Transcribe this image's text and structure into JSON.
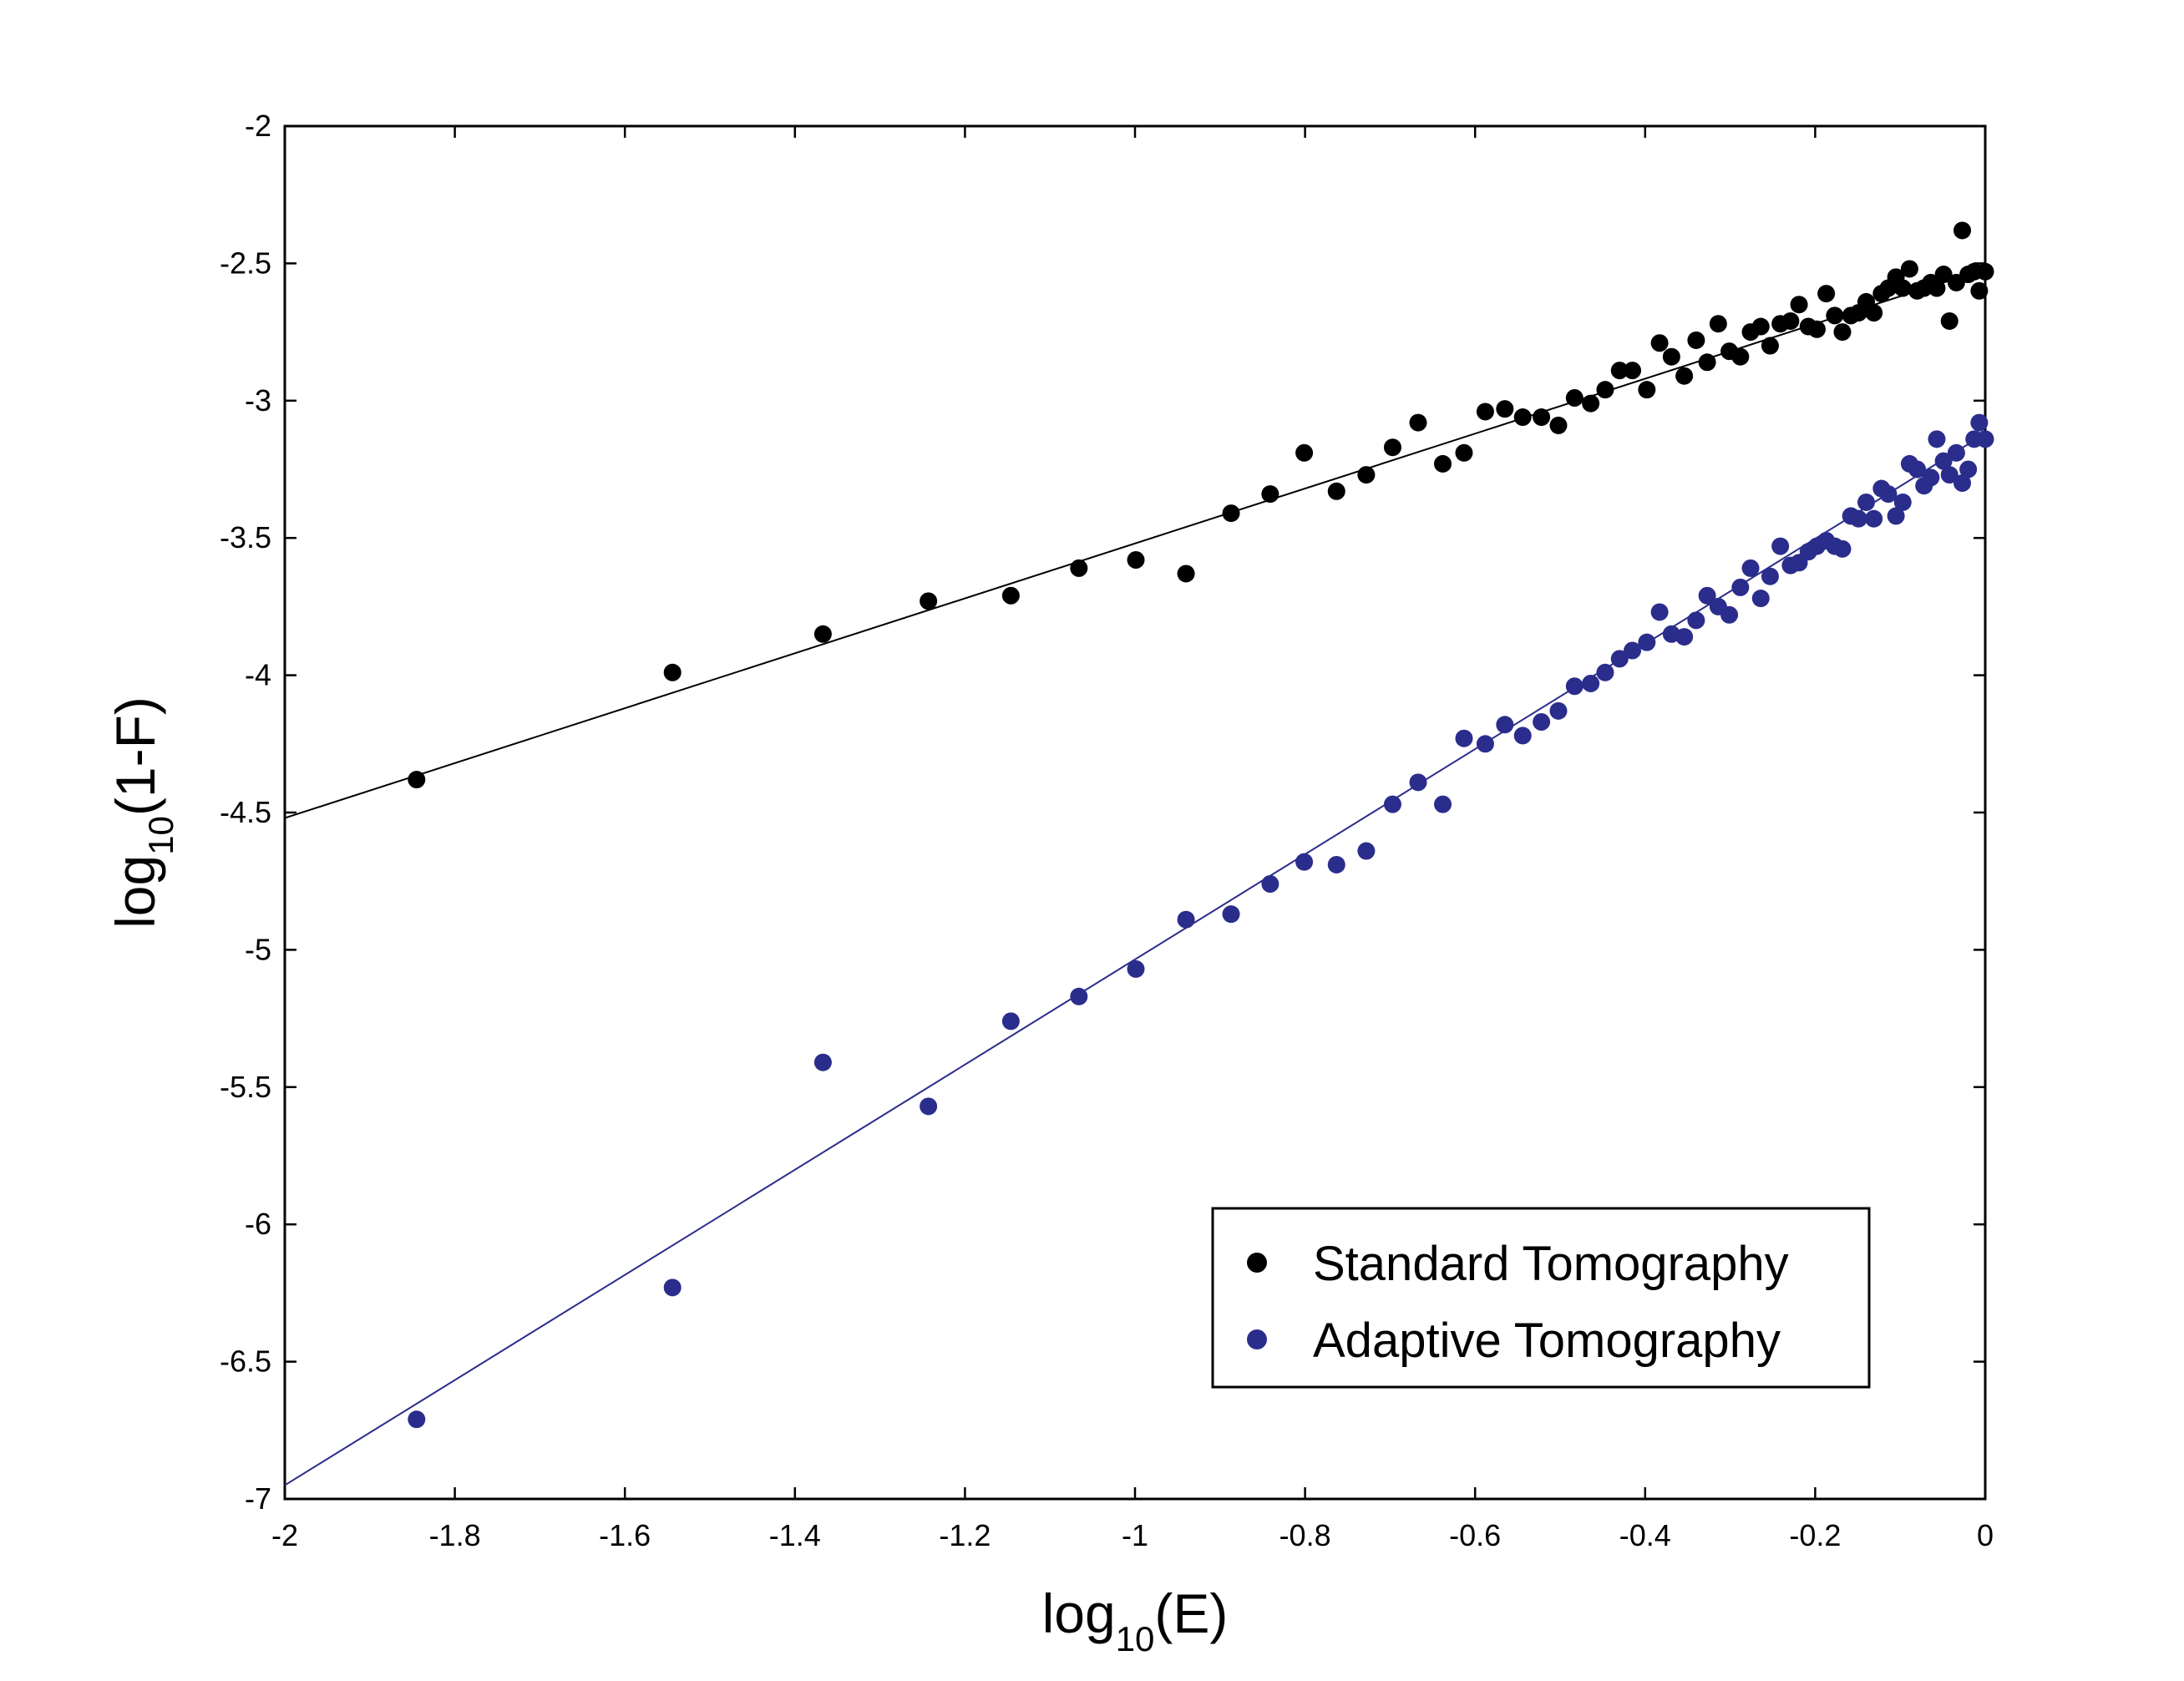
{
  "chart_data": {
    "type": "scatter",
    "title": "",
    "xlabel": {
      "prefix": "log",
      "sub": "10",
      "suffix": "(E)"
    },
    "ylabel": {
      "prefix": "log",
      "sub": "10",
      "suffix": "(1-F)"
    },
    "xlim": [
      -2,
      0
    ],
    "ylim": [
      -7,
      -2
    ],
    "xticks": [
      -2,
      -1.8,
      -1.6,
      -1.4,
      -1.2,
      -1,
      -0.8,
      -0.6,
      -0.4,
      -0.2,
      0
    ],
    "xtick_labels": [
      "-2",
      "-1.8",
      "-1.6",
      "-1.4",
      "-1.2",
      "-1",
      "-0.8",
      "-0.6",
      "-0.4",
      "-0.2",
      "0"
    ],
    "yticks": [
      -2,
      -2.5,
      -3,
      -3.5,
      -4,
      -4.5,
      -5,
      -5.5,
      -6,
      -6.5,
      -7
    ],
    "ytick_labels": [
      "-2",
      "-2.5",
      "-3",
      "-3.5",
      "-4",
      "-4.5",
      "-5",
      "-5.5",
      "-6",
      "-6.5",
      "-7"
    ],
    "grid": false,
    "legend_position": "bottom-right",
    "series": [
      {
        "name": "Standard Tomography",
        "color": "#000000",
        "fit_line": {
          "x": [
            -2,
            0
          ],
          "y": [
            -4.52,
            -2.52
          ]
        },
        "x": [
          -1.845,
          -1.544,
          -1.367,
          -1.243,
          -1.146,
          -1.066,
          -0.999,
          -0.94,
          -0.887,
          -0.841,
          -0.801,
          -0.763,
          -0.728,
          -0.697,
          -0.667,
          -0.638,
          -0.613,
          -0.588,
          -0.565,
          -0.544,
          -0.522,
          -0.502,
          -0.483,
          -0.464,
          -0.447,
          -0.43,
          -0.415,
          -0.398,
          -0.383,
          -0.369,
          -0.354,
          -0.34,
          -0.327,
          -0.314,
          -0.301,
          -0.288,
          -0.276,
          -0.264,
          -0.253,
          -0.241,
          -0.229,
          -0.219,
          -0.208,
          -0.198,
          -0.187,
          -0.177,
          -0.168,
          -0.158,
          -0.149,
          -0.14,
          -0.131,
          -0.122,
          -0.114,
          -0.105,
          -0.097,
          -0.089,
          -0.08,
          -0.072,
          -0.064,
          -0.057,
          -0.049,
          -0.042,
          -0.034,
          -0.027,
          -0.02,
          -0.013,
          -0.007,
          0.0
        ],
        "y": [
          -4.38,
          -3.99,
          -3.85,
          -3.73,
          -3.71,
          -3.61,
          -3.58,
          -3.63,
          -3.41,
          -3.34,
          -3.19,
          -3.33,
          -3.27,
          -3.17,
          -3.08,
          -3.23,
          -3.19,
          -3.04,
          -3.03,
          -3.06,
          -3.06,
          -3.09,
          -2.99,
          -3.01,
          -2.96,
          -2.89,
          -2.89,
          -2.96,
          -2.79,
          -2.84,
          -2.91,
          -2.78,
          -2.86,
          -2.72,
          -2.82,
          -2.84,
          -2.75,
          -2.73,
          -2.8,
          -2.72,
          -2.71,
          -2.65,
          -2.73,
          -2.74,
          -2.61,
          -2.69,
          -2.75,
          -2.69,
          -2.68,
          -2.64,
          -2.68,
          -2.61,
          -2.59,
          -2.55,
          -2.59,
          -2.52,
          -2.6,
          -2.59,
          -2.57,
          -2.59,
          -2.54,
          -2.71,
          -2.57,
          -2.38,
          -2.54,
          -2.53,
          -2.6,
          -2.53
        ]
      },
      {
        "name": "Adaptive Tomography",
        "color": "#2b2d8c",
        "fit_line": {
          "x": [
            -2,
            0
          ],
          "y": [
            -6.95,
            -3.12
          ]
        },
        "x": [
          -1.845,
          -1.544,
          -1.367,
          -1.243,
          -1.146,
          -1.066,
          -0.999,
          -0.94,
          -0.887,
          -0.841,
          -0.801,
          -0.763,
          -0.728,
          -0.697,
          -0.667,
          -0.638,
          -0.613,
          -0.588,
          -0.565,
          -0.544,
          -0.522,
          -0.502,
          -0.483,
          -0.464,
          -0.447,
          -0.43,
          -0.415,
          -0.398,
          -0.383,
          -0.369,
          -0.354,
          -0.34,
          -0.327,
          -0.314,
          -0.301,
          -0.288,
          -0.276,
          -0.264,
          -0.253,
          -0.241,
          -0.229,
          -0.219,
          -0.208,
          -0.198,
          -0.187,
          -0.177,
          -0.168,
          -0.158,
          -0.149,
          -0.14,
          -0.131,
          -0.122,
          -0.114,
          -0.105,
          -0.097,
          -0.089,
          -0.08,
          -0.072,
          -0.064,
          -0.057,
          -0.049,
          -0.042,
          -0.034,
          -0.027,
          -0.02,
          -0.013,
          -0.007,
          0.0
        ],
        "y": [
          -6.71,
          -6.23,
          -5.41,
          -5.57,
          -5.26,
          -5.17,
          -5.07,
          -4.89,
          -4.87,
          -4.76,
          -4.68,
          -4.69,
          -4.64,
          -4.47,
          -4.39,
          -4.47,
          -4.23,
          -4.25,
          -4.18,
          -4.22,
          -4.17,
          -4.13,
          -4.04,
          -4.03,
          -3.99,
          -3.94,
          -3.91,
          -3.88,
          -3.77,
          -3.85,
          -3.86,
          -3.8,
          -3.71,
          -3.75,
          -3.78,
          -3.68,
          -3.61,
          -3.72,
          -3.64,
          -3.53,
          -3.6,
          -3.59,
          -3.55,
          -3.53,
          -3.51,
          -3.53,
          -3.54,
          -3.42,
          -3.43,
          -3.37,
          -3.43,
          -3.32,
          -3.34,
          -3.42,
          -3.37,
          -3.23,
          -3.25,
          -3.31,
          -3.28,
          -3.14,
          -3.22,
          -3.27,
          -3.19,
          -3.3,
          -3.25,
          -3.14,
          -3.08,
          -3.14
        ]
      }
    ]
  }
}
